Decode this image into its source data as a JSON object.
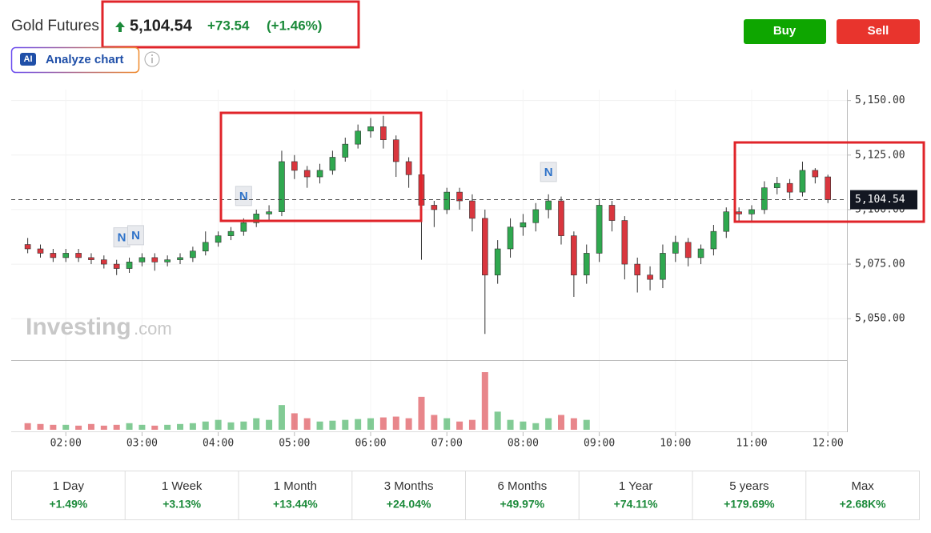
{
  "header": {
    "title": "Gold Futures",
    "price": "5,104.54",
    "change": "+73.54",
    "change_pct": "(+1.46%)"
  },
  "buttons": {
    "buy": "Buy",
    "sell": "Sell",
    "ai": "AI",
    "analyze": "Analyze chart"
  },
  "watermark": {
    "brand": "Investing",
    "suffix": ".com"
  },
  "chart_data": {
    "type": "candlestick",
    "up_color": "#2fa84f",
    "down_color": "#d9363e",
    "x": [
      90,
      100,
      110,
      120,
      130,
      140,
      150,
      160,
      170,
      180,
      190,
      200,
      210,
      220,
      230,
      240,
      250,
      260,
      270,
      280,
      290,
      300,
      310,
      320,
      330,
      340,
      350,
      360,
      370,
      380,
      390,
      400,
      410,
      420,
      430,
      440,
      450,
      460,
      470,
      480,
      490,
      500,
      510,
      520,
      530,
      540,
      550,
      560,
      570,
      580,
      590,
      600,
      610,
      620,
      630,
      640,
      650,
      660,
      670,
      680,
      690,
      700,
      710,
      720
    ],
    "open": [
      5084,
      5082,
      5080,
      5078,
      5080,
      5078,
      5077,
      5075,
      5073,
      5076,
      5078,
      5076,
      5077,
      5078,
      5081,
      5085,
      5088,
      5090,
      5094,
      5098,
      5099,
      5122,
      5118,
      5115,
      5118,
      5124,
      5130,
      5136,
      5138,
      5132,
      5122,
      5116,
      5102,
      5100,
      5108,
      5104,
      5096,
      5070,
      5082,
      5092,
      5094,
      5100,
      5104,
      5088,
      5070,
      5080,
      5102,
      5095,
      5075,
      5070,
      5068,
      5080,
      5085,
      5078,
      5082,
      5090,
      5099,
      5098,
      5100,
      5110,
      5112,
      5108,
      5118,
      5115
    ],
    "high": [
      5087,
      5084,
      5082,
      5082,
      5082,
      5080,
      5079,
      5077,
      5078,
      5080,
      5080,
      5079,
      5080,
      5083,
      5090,
      5090,
      5092,
      5096,
      5100,
      5102,
      5127,
      5125,
      5120,
      5121,
      5127,
      5133,
      5139,
      5142,
      5143,
      5134,
      5124,
      5118,
      5104,
      5110,
      5110,
      5107,
      5100,
      5086,
      5096,
      5098,
      5103,
      5107,
      5106,
      5090,
      5084,
      5105,
      5104,
      5097,
      5078,
      5074,
      5084,
      5088,
      5087,
      5084,
      5093,
      5101,
      5101,
      5102,
      5113,
      5115,
      5114,
      5122,
      5119,
      5116
    ],
    "low": [
      5080,
      5078,
      5076,
      5076,
      5076,
      5075,
      5073,
      5070,
      5071,
      5074,
      5072,
      5074,
      5075,
      5076,
      5079,
      5083,
      5086,
      5088,
      5092,
      5095,
      5097,
      5114,
      5110,
      5112,
      5116,
      5122,
      5128,
      5133,
      5128,
      5115,
      5110,
      5077,
      5092,
      5098,
      5100,
      5090,
      5043,
      5066,
      5078,
      5088,
      5090,
      5096,
      5084,
      5060,
      5066,
      5076,
      5090,
      5068,
      5062,
      5063,
      5064,
      5076,
      5074,
      5075,
      5079,
      5087,
      5095,
      5094,
      5098,
      5107,
      5105,
      5106,
      5112,
      5103
    ],
    "close": [
      5082,
      5080,
      5078,
      5080,
      5078,
      5077,
      5075,
      5073,
      5076,
      5078,
      5076,
      5077,
      5078,
      5081,
      5085,
      5088,
      5090,
      5094,
      5098,
      5099,
      5122,
      5118,
      5115,
      5118,
      5124,
      5130,
      5136,
      5138,
      5132,
      5122,
      5116,
      5102,
      5100,
      5108,
      5104,
      5096,
      5070,
      5082,
      5092,
      5094,
      5100,
      5104,
      5088,
      5070,
      5080,
      5102,
      5095,
      5075,
      5070,
      5068,
      5080,
      5085,
      5078,
      5082,
      5090,
      5099,
      5098,
      5100,
      5110,
      5112,
      5108,
      5118,
      5115,
      5104.54
    ],
    "volume": [
      8,
      7,
      6,
      6,
      5,
      7,
      5,
      6,
      8,
      6,
      5,
      6,
      7,
      8,
      10,
      12,
      9,
      10,
      14,
      12,
      30,
      20,
      14,
      10,
      11,
      12,
      13,
      14,
      15,
      16,
      14,
      40,
      18,
      14,
      10,
      12,
      70,
      22,
      12,
      10,
      8,
      14,
      18,
      14,
      12,
      null,
      null,
      null,
      null,
      null,
      null,
      null,
      null,
      null,
      null,
      null,
      null,
      null,
      null,
      null,
      null,
      null,
      null,
      null
    ],
    "xlim": [
      77,
      735
    ],
    "ylim": [
      5031,
      5155
    ],
    "xticks": [
      {
        "value": 120,
        "label": "02:00"
      },
      {
        "value": 180,
        "label": "03:00"
      },
      {
        "value": 240,
        "label": "04:00"
      },
      {
        "value": 300,
        "label": "05:00"
      },
      {
        "value": 360,
        "label": "06:00"
      },
      {
        "value": 420,
        "label": "07:00"
      },
      {
        "value": 480,
        "label": "08:00"
      },
      {
        "value": 540,
        "label": "09:00"
      },
      {
        "value": 600,
        "label": "10:00"
      },
      {
        "value": 660,
        "label": "11:00"
      },
      {
        "value": 720,
        "label": "12:00"
      }
    ],
    "yticks": [
      {
        "value": 5050,
        "label": "5,050.00"
      },
      {
        "value": 5075,
        "label": "5,075.00"
      },
      {
        "value": 5100,
        "label": "5,100.00"
      },
      {
        "value": 5125,
        "label": "5,125.00"
      },
      {
        "value": 5150,
        "label": "5,150.00"
      }
    ],
    "last_price": {
      "value": 5104.54,
      "label": "5,104.54"
    },
    "grid": true,
    "news_markers": [
      {
        "x": 164,
        "label": "N"
      },
      {
        "x": 175,
        "label": "N"
      },
      {
        "x": 260,
        "label": "N"
      },
      {
        "x": 500,
        "label": "N"
      }
    ]
  },
  "performance": [
    {
      "period": "1 Day",
      "change": "+1.49%"
    },
    {
      "period": "1 Week",
      "change": "+3.13%"
    },
    {
      "period": "1 Month",
      "change": "+13.44%"
    },
    {
      "period": "3 Months",
      "change": "+24.04%"
    },
    {
      "period": "6 Months",
      "change": "+49.97%"
    },
    {
      "period": "1 Year",
      "change": "+74.11%"
    },
    {
      "period": "5 years",
      "change": "+179.69%"
    },
    {
      "period": "Max",
      "change": "+2.68K%"
    }
  ]
}
